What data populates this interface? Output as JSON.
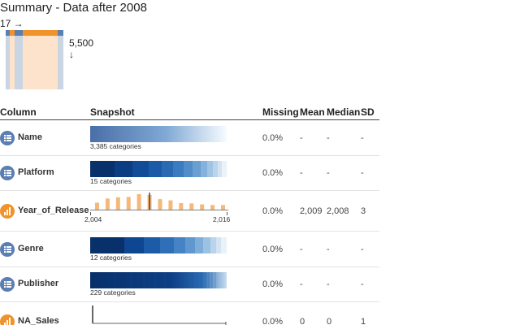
{
  "title": "Summary - Data after 2008",
  "dims": {
    "rows_label": "17 →",
    "cols_label": "5,500",
    "cols_arrow": "↓"
  },
  "headers": {
    "column": "Column",
    "snapshot": "Snapshot",
    "missing": "Missing",
    "mean": "Mean",
    "median": "Median",
    "sd": "SD"
  },
  "colors": {
    "categorical_icon": "#5b7fb2",
    "numeric_icon": "#f0932b",
    "histogram_bar": "#f5b87a",
    "blue_dark": "#08306b",
    "blue_light": "#f7fbff"
  },
  "rows": [
    {
      "name": "Name",
      "type": "categorical",
      "icon": "list-icon",
      "caption": "3,385 categories",
      "missing": "0.0%",
      "mean": "-",
      "median": "-",
      "sd": "-"
    },
    {
      "name": "Platform",
      "type": "categorical",
      "icon": "list-icon",
      "caption": "15 categories",
      "missing": "0.0%",
      "mean": "-",
      "median": "-",
      "sd": "-"
    },
    {
      "name": "Year_of_Release",
      "type": "numeric",
      "icon": "bar-chart-icon",
      "axis_min": "2,004",
      "axis_max": "2,016",
      "missing": "0.0%",
      "mean": "2,009",
      "median": "2,008",
      "sd": "3"
    },
    {
      "name": "Genre",
      "type": "categorical",
      "icon": "list-icon",
      "caption": "12 categories",
      "missing": "0.0%",
      "mean": "-",
      "median": "-",
      "sd": "-"
    },
    {
      "name": "Publisher",
      "type": "categorical",
      "icon": "list-icon",
      "caption": "229 categories",
      "missing": "0.0%",
      "mean": "-",
      "median": "-",
      "sd": "-"
    },
    {
      "name": "NA_Sales",
      "type": "numeric",
      "icon": "bar-chart-icon",
      "missing": "0.0%",
      "mean": "0",
      "median": "0",
      "sd": "1"
    }
  ],
  "chart_data": [
    {
      "type": "bar",
      "title": "",
      "xlabel": "",
      "ylabel": "",
      "xlim": [
        2004,
        2016
      ],
      "x": [
        2004,
        2005,
        2006,
        2007,
        2008,
        2009,
        2010,
        2011,
        2012,
        2013,
        2014,
        2015,
        2016
      ],
      "values": [
        0.45,
        0.72,
        0.8,
        0.82,
        1.0,
        0.95,
        0.68,
        0.6,
        0.42,
        0.4,
        0.34,
        0.3,
        0.3
      ],
      "mean_marker": 2009
    }
  ]
}
